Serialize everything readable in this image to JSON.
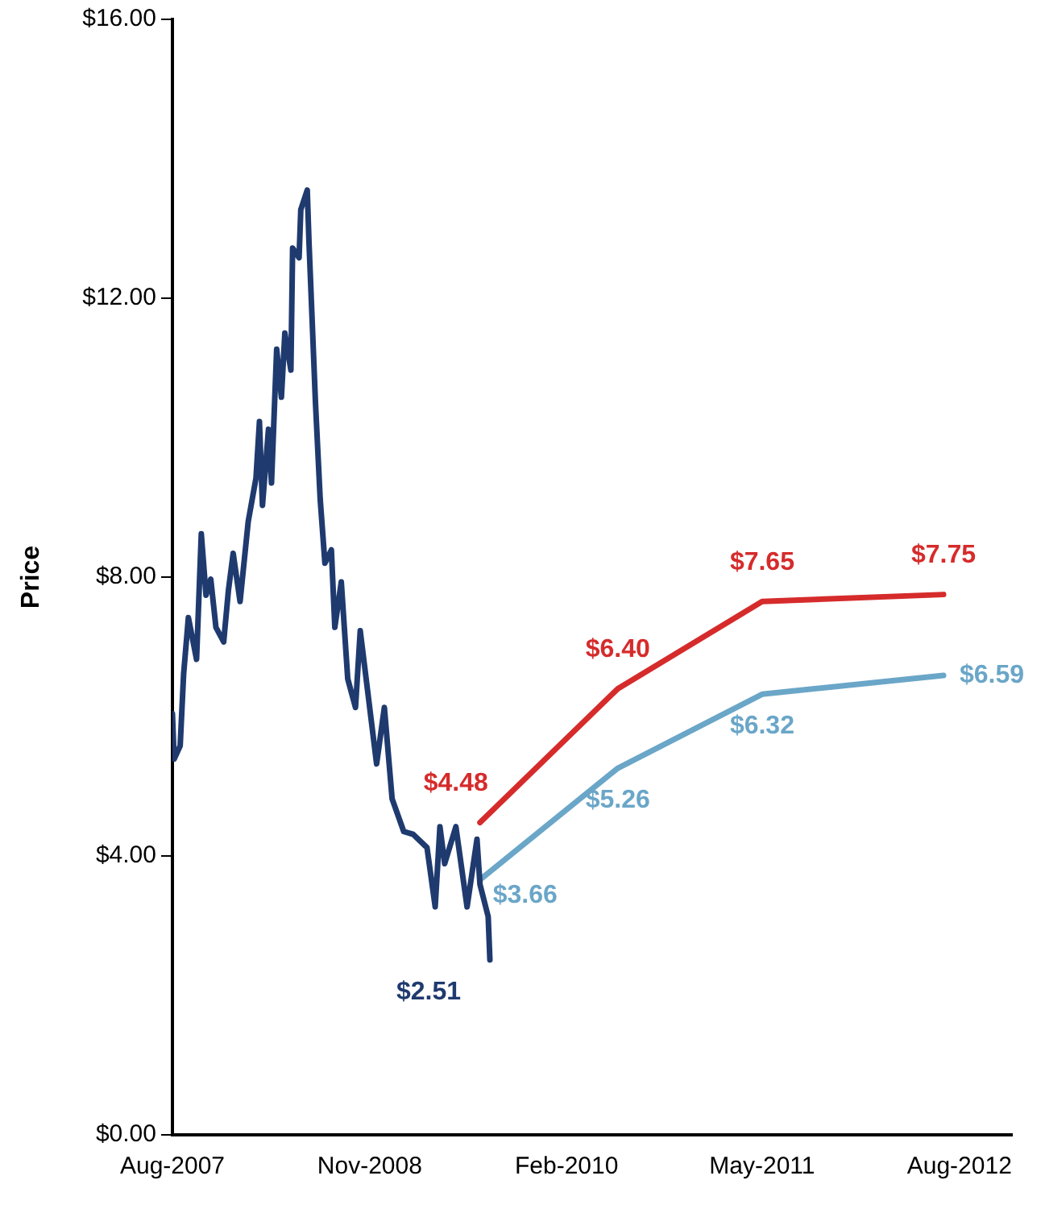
{
  "chart_data": {
    "type": "line",
    "ylabel": "Price",
    "xlim": [
      "2007-08",
      "2012-12"
    ],
    "xticks": [
      {
        "value": "2007-08",
        "label": "Aug-2007"
      },
      {
        "value": "2008-11",
        "label": "Nov-2008"
      },
      {
        "value": "2010-02",
        "label": "Feb-2010"
      },
      {
        "value": "2011-05",
        "label": "May-2011"
      },
      {
        "value": "2012-08",
        "label": "Aug-2012"
      }
    ],
    "ylim": [
      0,
      16
    ],
    "yticks": [
      {
        "value": 0,
        "label": "$0.00"
      },
      {
        "value": 4,
        "label": "$4.00"
      },
      {
        "value": 8,
        "label": "$8.00"
      },
      {
        "value": 12,
        "label": "$12.00"
      },
      {
        "value": 16,
        "label": "$16.00"
      }
    ],
    "grid": false,
    "legend": false,
    "marker": "none",
    "line_style": "solid",
    "series": [
      {
        "color": "#1f3a6e",
        "x": [
          "2007-08-01",
          "2007-08-05",
          "2007-08-19",
          "2007-08-27",
          "2007-09-07",
          "2007-09-26",
          "2007-10-07",
          "2007-10-18",
          "2007-10-29",
          "2007-11-10",
          "2007-11-28",
          "2007-12-09",
          "2007-12-20",
          "2008-01-05",
          "2008-01-24",
          "2008-02-11",
          "2008-02-19",
          "2008-02-26",
          "2008-03-11",
          "2008-03-18",
          "2008-03-30",
          "2008-04-10",
          "2008-04-18",
          "2008-05-02",
          "2008-05-06",
          "2008-05-21",
          "2008-05-25",
          "2008-06-09",
          "2008-06-13",
          "2008-06-28",
          "2008-07-09",
          "2008-07-20",
          "2008-08-04",
          "2008-08-12",
          "2008-08-27",
          "2008-09-11",
          "2008-09-29",
          "2008-10-10",
          "2008-11-17",
          "2008-12-05",
          "2008-12-23",
          "2009-01-19",
          "2009-02-10",
          "2009-03-14",
          "2009-04-02",
          "2009-04-13",
          "2009-04-24",
          "2009-05-20",
          "2009-06-15",
          "2009-07-08",
          "2009-07-15",
          "2009-08-03",
          "2009-08-07"
        ],
        "values": [
          6.04,
          5.39,
          5.58,
          6.61,
          7.42,
          6.82,
          8.62,
          7.74,
          7.97,
          7.28,
          7.07,
          7.81,
          8.34,
          7.65,
          8.8,
          9.42,
          10.23,
          9.03,
          10.12,
          9.35,
          11.27,
          10.58,
          11.5,
          10.97,
          12.72,
          12.58,
          13.27,
          13.55,
          12.81,
          10.51,
          9.12,
          8.2,
          8.39,
          7.28,
          7.93,
          6.54,
          6.13,
          7.23,
          5.32,
          6.13,
          4.82,
          4.35,
          4.31,
          4.12,
          3.27,
          4.42,
          3.89,
          4.42,
          3.27,
          4.24,
          3.59,
          3.13,
          2.51
        ],
        "value_labels": [
          null,
          null,
          null,
          null,
          null,
          null,
          null,
          null,
          null,
          null,
          null,
          null,
          null,
          null,
          null,
          null,
          null,
          null,
          null,
          null,
          null,
          null,
          null,
          null,
          null,
          null,
          null,
          null,
          null,
          null,
          null,
          null,
          null,
          null,
          null,
          null,
          null,
          null,
          null,
          null,
          null,
          null,
          null,
          null,
          null,
          null,
          null,
          null,
          null,
          null,
          null,
          null,
          "$2.51"
        ]
      },
      {
        "color": "#d62b2b",
        "x": [
          "2009-07-15",
          "2010-05-31",
          "2011-05-01",
          "2012-06-25"
        ],
        "values": [
          4.48,
          6.4,
          7.65,
          7.75
        ],
        "value_labels": [
          "$4.48",
          "$6.40",
          "$7.65",
          "$7.75"
        ]
      },
      {
        "color": "#6aa6c8",
        "x": [
          "2009-07-15",
          "2010-05-31",
          "2011-05-01",
          "2012-06-25"
        ],
        "values": [
          3.66,
          5.26,
          6.32,
          6.59
        ],
        "value_labels": [
          "$3.66",
          "$5.26",
          "$6.32",
          "$6.59"
        ]
      }
    ]
  }
}
